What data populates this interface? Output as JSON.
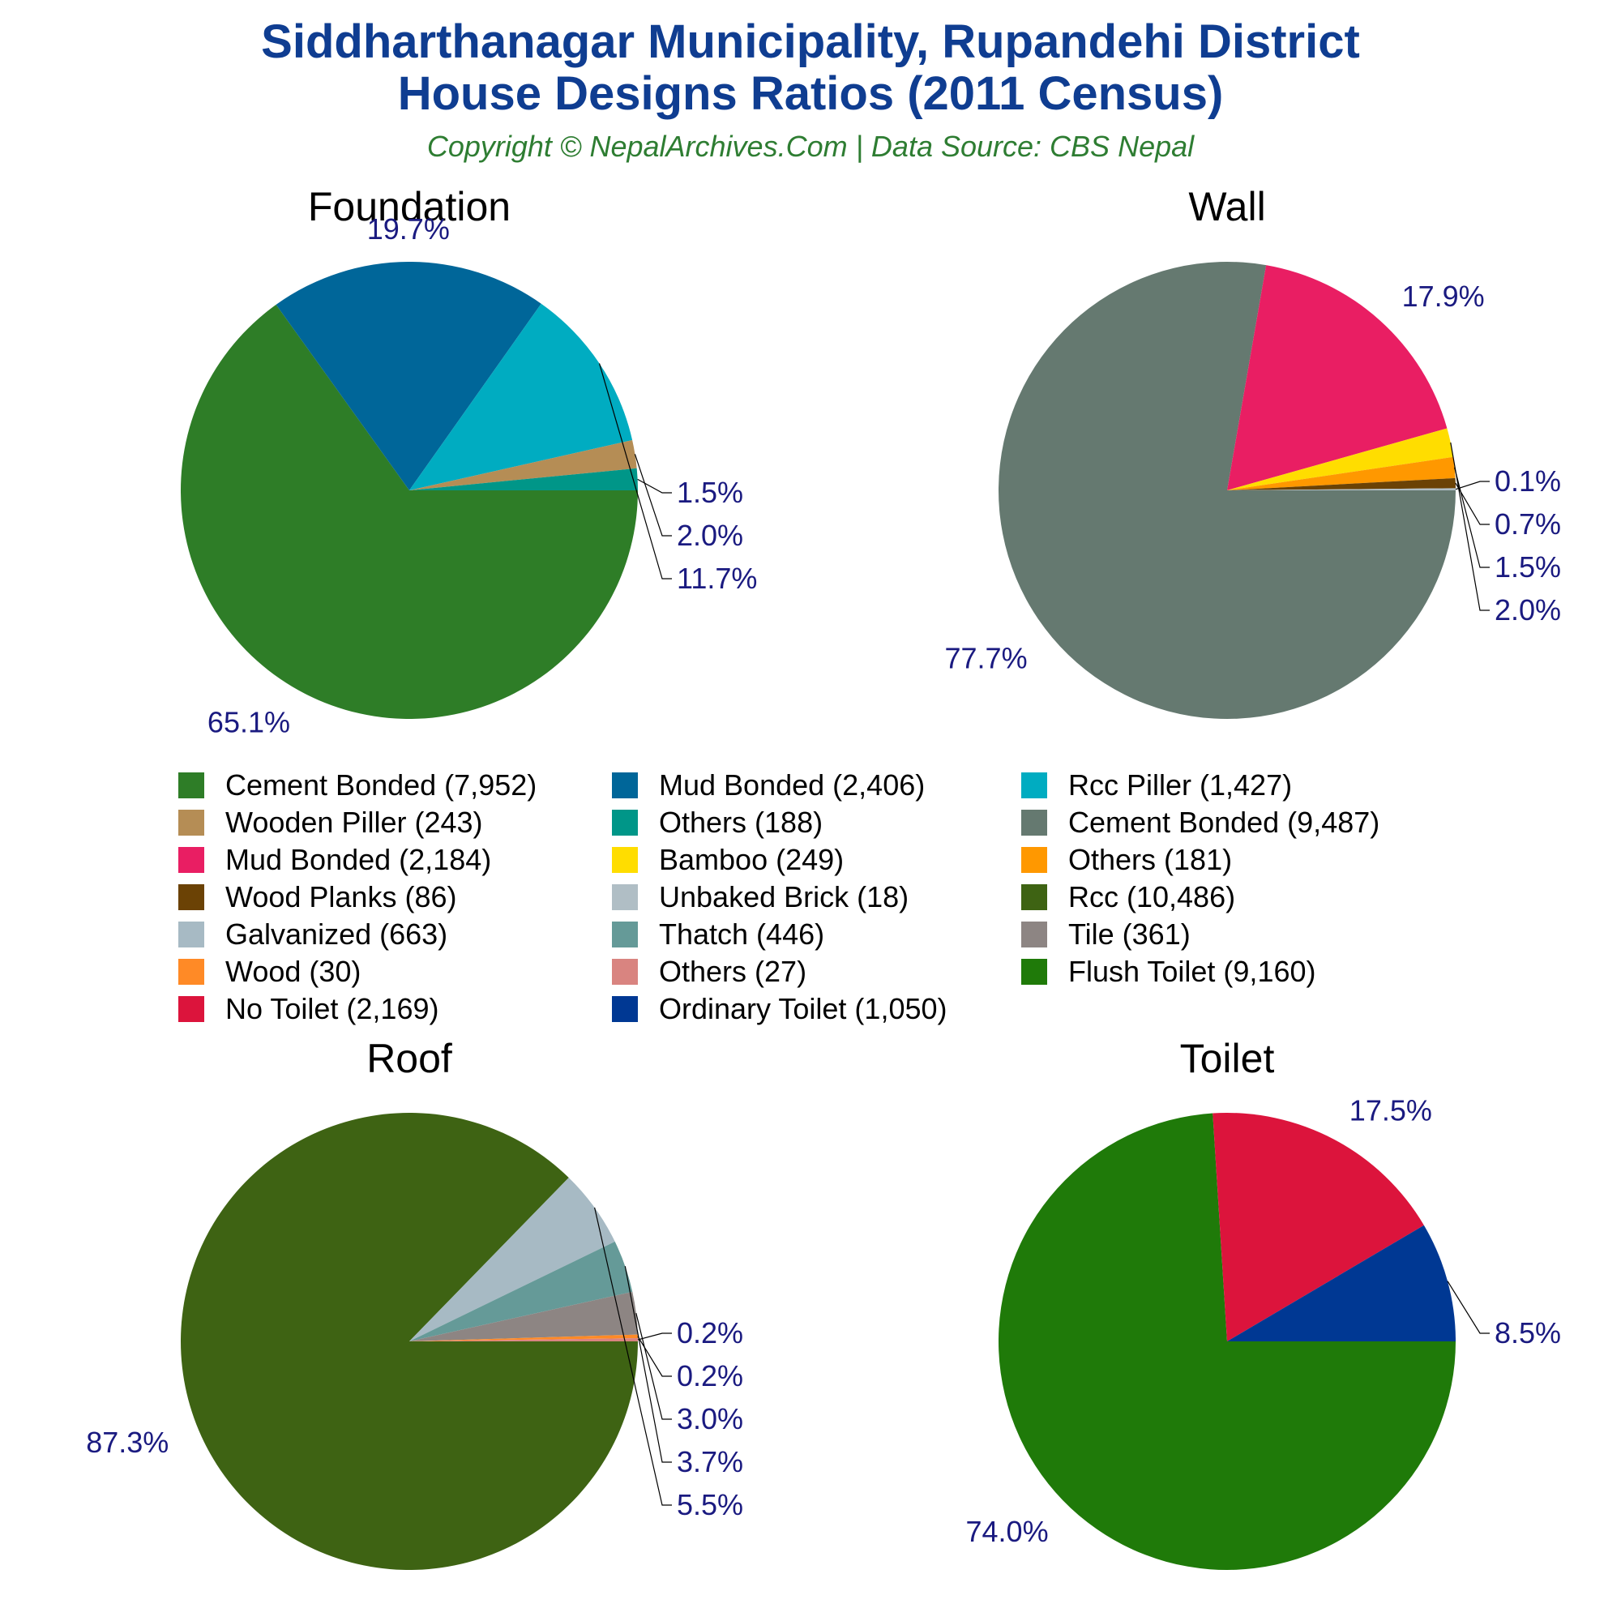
{
  "header": {
    "title_line1": "Siddharthanagar Municipality, Rupandehi District",
    "title_line2": "House Designs Ratios (2011 Census)",
    "subtitle": "Copyright © NepalArchives.Com | Data Source: CBS Nepal"
  },
  "chart_data": [
    {
      "type": "pie",
      "title": "Foundation",
      "slices": [
        {
          "name": "Cement Bonded",
          "value": 7952,
          "label": "65.1%",
          "color": "#2e7d27"
        },
        {
          "name": "Mud Bonded",
          "value": 2406,
          "label": "19.7%",
          "color": "#006699"
        },
        {
          "name": "Rcc Piller",
          "value": 1427,
          "label": "11.7%",
          "color": "#00acc1"
        },
        {
          "name": "Wooden Piller",
          "value": 243,
          "label": "2.0%",
          "color": "#b58d55"
        },
        {
          "name": "Others",
          "value": 188,
          "label": "1.5%",
          "color": "#009688"
        }
      ]
    },
    {
      "type": "pie",
      "title": "Wall",
      "slices": [
        {
          "name": "Cement Bonded",
          "value": 9487,
          "label": "77.7%",
          "color": "#657970"
        },
        {
          "name": "Mud Bonded",
          "value": 2184,
          "label": "17.9%",
          "color": "#e91e63"
        },
        {
          "name": "Bamboo",
          "value": 249,
          "label": "2.0%",
          "color": "#ffdd00"
        },
        {
          "name": "Others",
          "value": 181,
          "label": "1.5%",
          "color": "#ff9800"
        },
        {
          "name": "Wood Planks",
          "value": 86,
          "label": "0.7%",
          "color": "#6b4205"
        },
        {
          "name": "Unbaked Brick",
          "value": 18,
          "label": "0.1%",
          "color": "#b0bec5"
        }
      ]
    },
    {
      "type": "pie",
      "title": "Roof",
      "slices": [
        {
          "name": "Rcc",
          "value": 10486,
          "label": "87.3%",
          "color": "#3e6313"
        },
        {
          "name": "Galvanized",
          "value": 663,
          "label": "5.5%",
          "color": "#a7bac4"
        },
        {
          "name": "Thatch",
          "value": 446,
          "label": "3.7%",
          "color": "#659a98"
        },
        {
          "name": "Tile",
          "value": 361,
          "label": "3.0%",
          "color": "#8d8583"
        },
        {
          "name": "Wood",
          "value": 30,
          "label": "0.2%",
          "color": "#ff8a26"
        },
        {
          "name": "Others",
          "value": 27,
          "label": "0.2%",
          "color": "#d98480"
        }
      ]
    },
    {
      "type": "pie",
      "title": "Toilet",
      "slices": [
        {
          "name": "Flush Toilet",
          "value": 9160,
          "label": "74.0%",
          "color": "#1f7a09"
        },
        {
          "name": "No Toilet",
          "value": 2169,
          "label": "17.5%",
          "color": "#dc143c"
        },
        {
          "name": "Ordinary Toilet",
          "value": 1050,
          "label": "8.5%",
          "color": "#003893"
        }
      ]
    }
  ],
  "legend": [
    {
      "label": "Cement Bonded (7,952)",
      "color": "#2e7d27"
    },
    {
      "label": "Mud Bonded (2,406)",
      "color": "#006699"
    },
    {
      "label": "Rcc Piller (1,427)",
      "color": "#00acc1"
    },
    {
      "label": "Wooden Piller (243)",
      "color": "#b58d55"
    },
    {
      "label": "Others (188)",
      "color": "#009688"
    },
    {
      "label": "Cement Bonded (9,487)",
      "color": "#657970"
    },
    {
      "label": "Mud Bonded (2,184)",
      "color": "#e91e63"
    },
    {
      "label": "Bamboo (249)",
      "color": "#ffdd00"
    },
    {
      "label": "Others (181)",
      "color": "#ff9800"
    },
    {
      "label": "Wood Planks (86)",
      "color": "#6b4205"
    },
    {
      "label": "Unbaked Brick (18)",
      "color": "#b0bec5"
    },
    {
      "label": "Rcc (10,486)",
      "color": "#3e6313"
    },
    {
      "label": "Galvanized (663)",
      "color": "#a7bac4"
    },
    {
      "label": "Thatch (446)",
      "color": "#659a98"
    },
    {
      "label": "Tile (361)",
      "color": "#8d8583"
    },
    {
      "label": "Wood (30)",
      "color": "#ff8a26"
    },
    {
      "label": "Others (27)",
      "color": "#d98480"
    },
    {
      "label": "Flush Toilet (9,160)",
      "color": "#1f7a09"
    },
    {
      "label": "No Toilet (2,169)",
      "color": "#dc143c"
    },
    {
      "label": "Ordinary Toilet (1,050)",
      "color": "#003893"
    }
  ]
}
